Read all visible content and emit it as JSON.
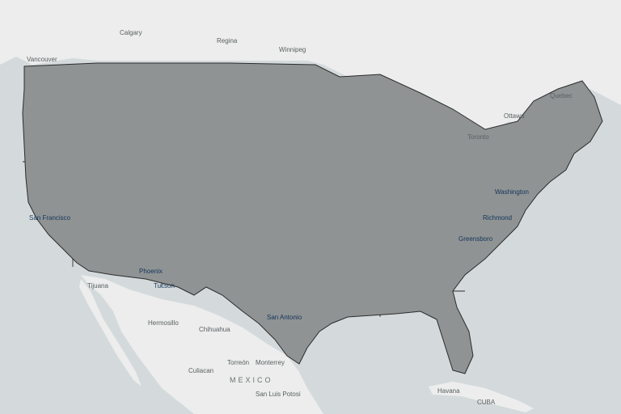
{
  "map": {
    "colors": {
      "water": "#d4dadc",
      "land": "#ecedec",
      "no_data": "#8f9394",
      "tier_1": "#7fe6f5",
      "tier_2": "#33b5e8",
      "tier_3": "#2a6fd0",
      "tier_4": "#1c3fa8",
      "highlight_outline": "#a6426b",
      "state_border": "#2b2b2b"
    },
    "labels": {
      "calgary": "Calgary",
      "regina": "Regina",
      "winnipeg": "Winnipeg",
      "vancouver": "Vancouver",
      "quebec": "Quebec",
      "ottawa": "Ottawa",
      "toronto": "Toronto",
      "tijuana": "Tijuana",
      "hermosillo": "Hermosillo",
      "chihuahua": "Chihuahua",
      "torreon": "Torreón",
      "monterrey": "Monterrey",
      "culiacan": "Culiacan",
      "mexico": "MEXICO",
      "san_luis_potosi": "San Luis\nPotosi",
      "havana": "Havana",
      "cuba": "CUBA",
      "san_antonio": "San Antonio",
      "richmond": "Richmond",
      "washington": "Washington",
      "greensboro": "Greensboro",
      "san_francisco": "San Francisco",
      "phoenix": "Phoenix",
      "tucson": "Tucson"
    }
  }
}
